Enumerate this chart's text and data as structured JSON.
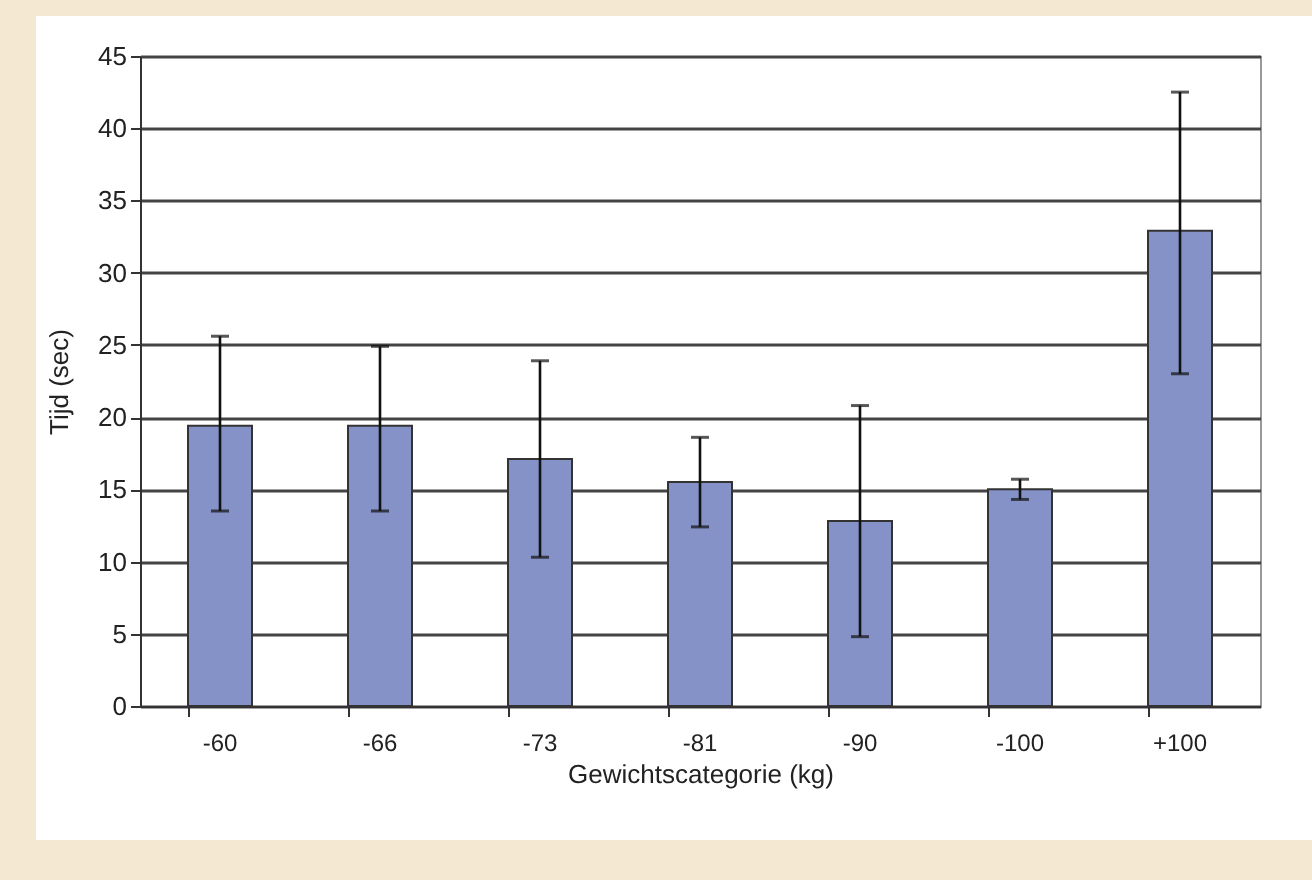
{
  "chart_data": {
    "type": "bar",
    "xlabel": "Gewichtscategorie (kg)",
    "ylabel": "Tijd (sec)",
    "categories": [
      "-60",
      "-66",
      "-73",
      "-81",
      "-90",
      "-100",
      "+100"
    ],
    "values": [
      19.4,
      19.4,
      17.1,
      15.5,
      12.8,
      15.0,
      32.9
    ],
    "errors": [
      [
        13.5,
        25.6
      ],
      [
        13.5,
        24.9
      ],
      [
        10.3,
        23.9
      ],
      [
        12.4,
        18.6
      ],
      [
        4.8,
        20.8
      ],
      [
        14.3,
        15.7
      ],
      [
        23.0,
        42.5
      ]
    ],
    "color": "#8592c8",
    "ylim": [
      0,
      45
    ],
    "yticks": [
      0,
      5,
      10,
      15,
      20,
      25,
      30,
      35,
      40,
      45
    ],
    "grid": "y"
  }
}
